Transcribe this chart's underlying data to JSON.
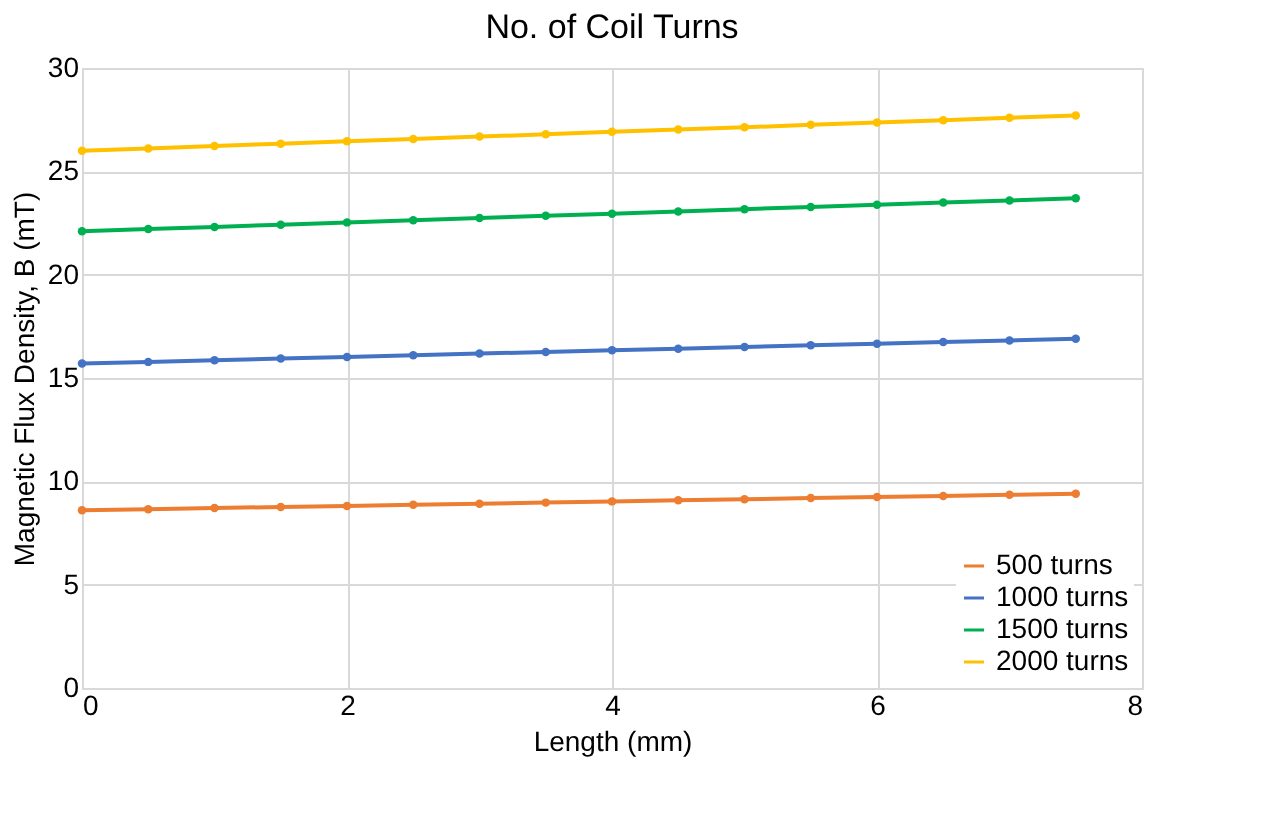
{
  "chart_data": {
    "type": "line",
    "title": "No. of Coil Turns",
    "xlabel": "Length (mm)",
    "ylabel": "Magnetic Flux Density, B (mT)",
    "x": [
      0,
      0.5,
      1,
      1.5,
      2,
      2.5,
      3,
      3.5,
      4,
      4.5,
      5,
      5.5,
      6,
      6.5,
      7,
      7.5
    ],
    "series": [
      {
        "name": "500 turns",
        "color": "#ed7d31",
        "values": [
          8.6,
          8.65,
          8.71,
          8.76,
          8.81,
          8.87,
          8.92,
          8.97,
          9.03,
          9.08,
          9.13,
          9.19,
          9.24,
          9.29,
          9.35,
          9.4
        ]
      },
      {
        "name": "1000 turns",
        "color": "#4472c4",
        "values": [
          15.7,
          15.78,
          15.86,
          15.94,
          16.02,
          16.1,
          16.18,
          16.26,
          16.34,
          16.42,
          16.5,
          16.58,
          16.66,
          16.74,
          16.82,
          16.9
        ]
      },
      {
        "name": "1500 turns",
        "color": "#00b050",
        "values": [
          22.1,
          22.21,
          22.31,
          22.42,
          22.53,
          22.63,
          22.74,
          22.85,
          22.95,
          23.06,
          23.17,
          23.27,
          23.38,
          23.49,
          23.59,
          23.7
        ]
      },
      {
        "name": "2000 turns",
        "color": "#ffc000",
        "values": [
          26.0,
          26.11,
          26.23,
          26.34,
          26.45,
          26.57,
          26.68,
          26.79,
          26.91,
          27.02,
          27.13,
          27.25,
          27.36,
          27.47,
          27.59,
          27.7
        ]
      }
    ],
    "xlim": [
      0,
      8
    ],
    "xticks": [
      0,
      2,
      4,
      6,
      8
    ],
    "ylim": [
      0,
      30
    ],
    "yticks": [
      0,
      5,
      10,
      15,
      20,
      25,
      30
    ],
    "grid": true,
    "legend": "bottom right",
    "marker": "circle",
    "line_style": "solid"
  }
}
